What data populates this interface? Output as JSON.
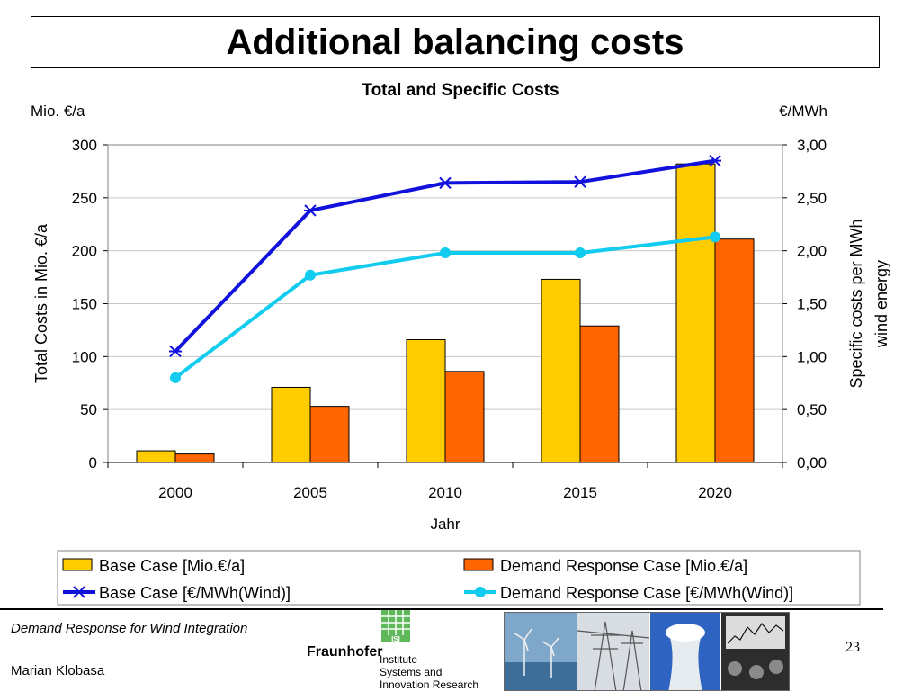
{
  "page": {
    "title": "Additional balancing costs",
    "footer_left": "Demand Response for Wind Integration",
    "footer_author": "Marian Klobasa",
    "page_number": "23",
    "logo": {
      "brand": "Fraunhofer",
      "badge": "ISI",
      "institute_lines": [
        "Institute",
        "Systems and",
        "Innovation Research"
      ]
    }
  },
  "colors": {
    "base_case_bar": "#FFCC00",
    "demand_response_bar": "#FF6600",
    "base_case_line": "#1111DD",
    "demand_response_line": "#11CCEE"
  },
  "chart_data": {
    "type": "bar",
    "title": "Total and Specific Costs",
    "left_unit": "Mio. €/a",
    "right_unit": "€/MWh",
    "ylabel": "Total Costs in Mio. €/a",
    "ylabel_right": [
      "Specific costs per MWh",
      "wind energy"
    ],
    "xlabel": "Jahr",
    "categories": [
      "2000",
      "2005",
      "2010",
      "2015",
      "2020"
    ],
    "ylim": [
      0,
      300
    ],
    "yticks": [
      "0",
      "50",
      "100",
      "150",
      "200",
      "250",
      "300"
    ],
    "ylim_right": [
      0,
      3
    ],
    "yticks_right": [
      "0,00",
      "0,50",
      "1,00",
      "1,50",
      "2,00",
      "2,50",
      "3,00"
    ],
    "grid": true,
    "legend_position": "bottom",
    "bar_series": [
      {
        "name": "Base Case [Mio.€/a]",
        "values": [
          11,
          71,
          116,
          173,
          282
        ]
      },
      {
        "name": "Demand Response Case [Mio.€/a]",
        "values": [
          8,
          53,
          86,
          129,
          211
        ]
      }
    ],
    "line_series": [
      {
        "name": "Base Case [€/MWh(Wind)]",
        "marker": "star",
        "axis": "right",
        "values": [
          1.05,
          2.38,
          2.64,
          2.65,
          2.85
        ]
      },
      {
        "name": "Demand Response Case [€/MWh(Wind)]",
        "marker": "circle",
        "axis": "right",
        "values": [
          0.8,
          1.77,
          1.98,
          1.98,
          2.13
        ]
      }
    ]
  }
}
